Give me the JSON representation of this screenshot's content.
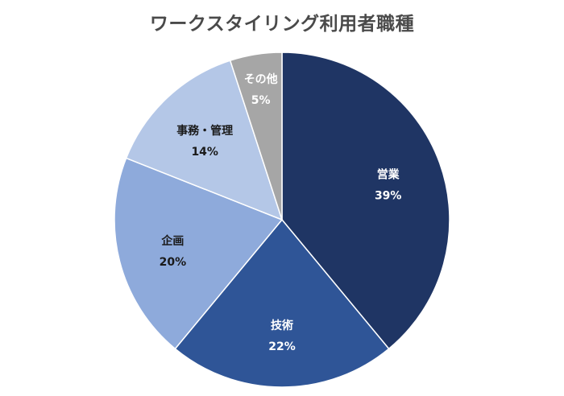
{
  "chart_data": {
    "type": "pie",
    "title": "ワークスタイリング利用者職種",
    "slices": [
      {
        "label": "営業",
        "value": 39,
        "display": "39%",
        "color": "#1f3564",
        "text_color": "#ffffff"
      },
      {
        "label": "技術",
        "value": 22,
        "display": "22%",
        "color": "#2f5597",
        "text_color": "#ffffff"
      },
      {
        "label": "企画",
        "value": 20,
        "display": "20%",
        "color": "#8eaadb",
        "text_color": "#1a1a1a"
      },
      {
        "label": "事務・管理",
        "value": 14,
        "display": "14%",
        "color": "#b4c7e7",
        "text_color": "#1a1a1a"
      },
      {
        "label": "その他",
        "value": 5,
        "display": "5%",
        "color": "#a6a6a6",
        "text_color": "#ffffff"
      }
    ],
    "start": "12 o'clock",
    "direction": "clockwise",
    "legend": "none"
  }
}
